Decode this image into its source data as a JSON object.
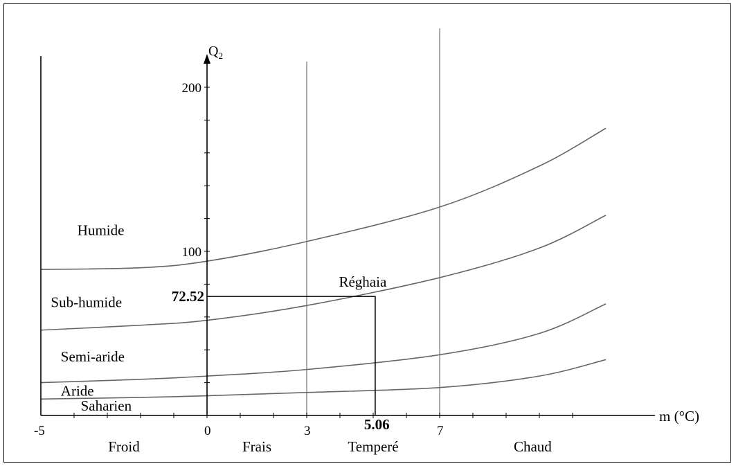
{
  "chart_data": {
    "type": "line",
    "title": "",
    "ylabel": "Q",
    "ylabel_sub": "2",
    "xlabel": "m (°C)",
    "xlim": [
      -5,
      12.5
    ],
    "ylim": [
      0,
      225
    ],
    "grid": false,
    "x_tick_labels": [
      "-5",
      "0",
      "3",
      "7"
    ],
    "y_tick_labels": [
      {
        "value": 200,
        "label": "200"
      },
      {
        "value": 100,
        "label": "100"
      }
    ],
    "vertical_dividers": [
      3,
      7
    ],
    "temperature_classes": [
      {
        "label": "Froid",
        "x": -2.5
      },
      {
        "label": "Frais",
        "x": 1.5
      },
      {
        "label": "Temperé",
        "x": 5.0
      },
      {
        "label": "Chaud",
        "x": 9.8
      }
    ],
    "bioclimatic_zones": [
      {
        "label": "Humide",
        "x": -3.9,
        "y": 110
      },
      {
        "label": "Sub-humide",
        "x": -4.7,
        "y": 66
      },
      {
        "label": "Semi-aride",
        "x": -4.4,
        "y": 33
      },
      {
        "label": "Aride",
        "x": -4.4,
        "y": 12
      },
      {
        "label": "Saharien",
        "x": -3.8,
        "y": 3
      }
    ],
    "series": [
      {
        "x": [
          -5,
          -2,
          0,
          3,
          7,
          10,
          12
        ],
        "y": [
          89,
          90,
          94,
          106,
          127,
          152,
          175
        ]
      },
      {
        "x": [
          -5,
          -2,
          0,
          3,
          7,
          10,
          12
        ],
        "y": [
          52,
          55,
          58,
          67,
          84,
          102,
          122
        ]
      },
      {
        "x": [
          -5,
          -2,
          0,
          3,
          7,
          10,
          12
        ],
        "y": [
          20,
          22,
          24,
          28,
          37,
          50,
          68
        ]
      },
      {
        "x": [
          -5,
          -2,
          0,
          3,
          7,
          10,
          12
        ],
        "y": [
          10,
          11,
          12,
          14,
          17,
          24,
          34
        ]
      }
    ],
    "station": {
      "name": "Réghaia",
      "m": 5.06,
      "q2": 72.52,
      "m_label": "5.06",
      "q2_label": "72.52"
    }
  }
}
